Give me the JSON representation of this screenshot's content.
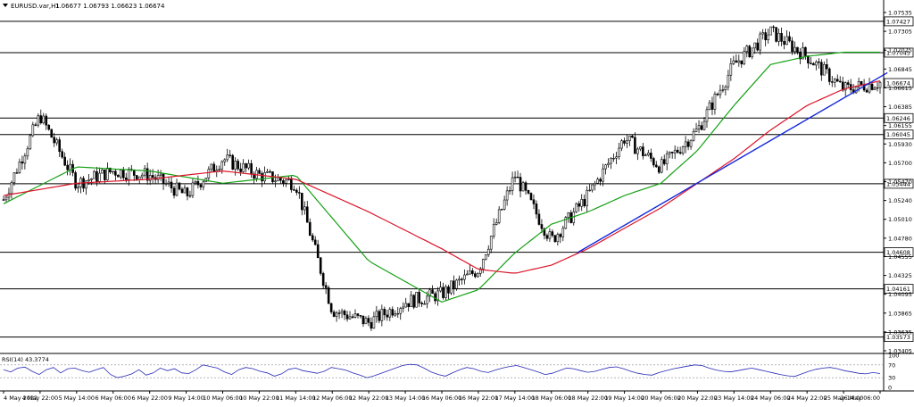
{
  "header": {
    "symbol_title": "EURUSD.var,H1",
    "ohlc": "1.06677 1.06793 1.06623 1.06674"
  },
  "colors": {
    "candle": "#000000",
    "ma_fast": "#14a014",
    "ma_slow": "#dc1428",
    "trendline": "#1428dc",
    "rsi": "#2828b4",
    "level_line": "#000000"
  },
  "chart_data": {
    "type": "line",
    "title": "EURUSD.var,H1",
    "price_axis": {
      "min": 1.03405,
      "max": 1.07535,
      "ticks": [
        "1.07535",
        "1.07305",
        "1.07075",
        "1.06845",
        "1.06615",
        "1.06385",
        "1.06155",
        "1.05930",
        "1.05700",
        "1.05470",
        "1.05240",
        "1.05010",
        "1.04780",
        "1.04555",
        "1.04325",
        "1.04095",
        "1.03865",
        "1.03635",
        "1.03405"
      ]
    },
    "horizontal_levels": [
      1.07427,
      1.07045,
      1.06246,
      1.06045,
      1.05444,
      1.04608,
      1.04161,
      1.03573
    ],
    "current_price": 1.06674,
    "time_labels": [
      "4 May 2022",
      "4 May 22:00",
      "5 May 14:00",
      "6 May 06:00",
      "6 May 22:00",
      "9 May 14:00",
      "10 May 06:00",
      "10 May 22:00",
      "11 May 14:00",
      "12 May 06:00",
      "12 May 22:00",
      "13 May 14:00",
      "16 May 06:00",
      "16 May 22:00",
      "17 May 14:00",
      "18 May 06:00",
      "18 May 22:00",
      "19 May 14:00",
      "20 May 06:00",
      "20 May 22:00",
      "23 May 14:00",
      "24 May 06:00",
      "24 May 22:00",
      "25 May 14:00",
      "26 May 06:00"
    ],
    "series": [
      {
        "name": "Close",
        "x": [
          0,
          1,
          2,
          3,
          4,
          5,
          6,
          7,
          8,
          9,
          10,
          11,
          12,
          13,
          14,
          15,
          16,
          17,
          18,
          19,
          20,
          21,
          22,
          23,
          24
        ],
        "values": [
          1.0525,
          1.0628,
          1.0545,
          1.056,
          1.0555,
          1.053,
          1.0575,
          1.0555,
          1.0545,
          1.039,
          1.0375,
          1.04,
          1.041,
          1.044,
          1.0555,
          1.0475,
          1.053,
          1.06,
          1.0565,
          1.061,
          1.069,
          1.073,
          1.07,
          1.066,
          1.0668
        ]
      },
      {
        "x": [
          0,
          2,
          4,
          6,
          8,
          10,
          12,
          13,
          14,
          15,
          16,
          17,
          18,
          19,
          20,
          21,
          22,
          23,
          24
        ],
        "values": [
          1.052,
          1.0565,
          1.056,
          1.0545,
          1.0555,
          1.045,
          1.04,
          1.0415,
          1.046,
          1.0495,
          1.051,
          1.053,
          1.0545,
          1.0585,
          1.064,
          1.069,
          1.07,
          1.0705,
          1.0705
        ]
      },
      {
        "x": [
          0,
          2,
          4,
          6,
          8,
          10,
          12,
          13,
          14,
          15,
          16,
          17,
          18,
          19,
          20,
          21,
          22,
          23,
          24
        ],
        "values": [
          1.053,
          1.0545,
          1.055,
          1.056,
          1.055,
          1.051,
          1.0465,
          1.044,
          1.0435,
          1.0445,
          1.0465,
          1.049,
          1.0515,
          1.0545,
          1.0575,
          1.061,
          1.064,
          1.066,
          1.067
        ]
      }
    ],
    "trendline": {
      "x": [
        15.7,
        24.2
      ],
      "values": [
        1.046,
        1.068
      ]
    },
    "rsi": {
      "label": "RSI(14) 43.3774",
      "ticks": [
        "100",
        "70",
        "30",
        "0"
      ],
      "range": [
        0,
        100
      ],
      "values": [
        55,
        48,
        60,
        63,
        50,
        40,
        55,
        62,
        45,
        58,
        60,
        52,
        47,
        55,
        62,
        40,
        30,
        35,
        42,
        55,
        38,
        45,
        60,
        52,
        58,
        45,
        43,
        55,
        70,
        65,
        60,
        48,
        40,
        55,
        62,
        58,
        50,
        45,
        35,
        42,
        56,
        60,
        52,
        48,
        44,
        50,
        62,
        58,
        54,
        45,
        38,
        30,
        36,
        44,
        52,
        60,
        68,
        72,
        70,
        60,
        48,
        40,
        35,
        45,
        55,
        62,
        58,
        50,
        46,
        54,
        60,
        65,
        68,
        62,
        55,
        48,
        40,
        44,
        52,
        60,
        58,
        52,
        47,
        50,
        56,
        62,
        64,
        58,
        50,
        44,
        40,
        38,
        46,
        52,
        58,
        62,
        66,
        70,
        68,
        60,
        54,
        50,
        48,
        52,
        56,
        60,
        55,
        50,
        45,
        40,
        36,
        34,
        42,
        50,
        56,
        60,
        62,
        58,
        52,
        48,
        44,
        42,
        46,
        43
      ]
    }
  }
}
